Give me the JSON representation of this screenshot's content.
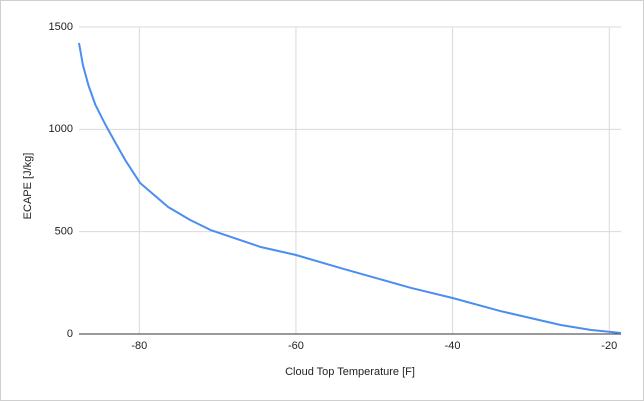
{
  "chart_data": {
    "type": "line",
    "x_label": "Cloud Top Temperature [F]",
    "y_label": "ECAPE [J/kg]",
    "series": [
      {
        "name": "ECAPE",
        "color": "#4a8ef0",
        "x": [
          -87.7,
          -87.2,
          -86.5,
          -85.6,
          -84.3,
          -83.1,
          -81.8,
          -79.9,
          -76.3,
          -73.5,
          -70.9,
          -64.5,
          -60,
          -54.3,
          -45.3,
          -40,
          -33.9,
          -26.2,
          -22.4,
          -18.5
        ],
        "values": [
          1422,
          1314,
          1216,
          1119,
          1021,
          938,
          850,
          738,
          620,
          557,
          508,
          425,
          386,
          322,
          225,
          176,
          112,
          44,
          20,
          5
        ]
      }
    ],
    "xlim": [
      -87.7,
      -18.5
    ],
    "ylim": [
      0,
      1500
    ],
    "xticks": [
      -80,
      -60,
      -40,
      -20
    ],
    "yticks": [
      0,
      500,
      1000,
      1500
    ],
    "grid": true
  }
}
